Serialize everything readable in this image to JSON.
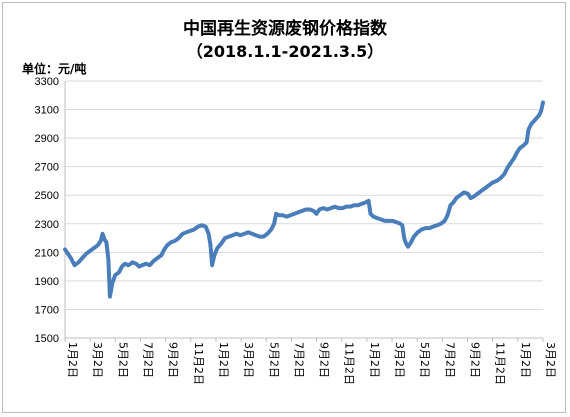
{
  "header": {
    "title": "中国再生资源废钢价格指数",
    "subtitle": "（2018.1.1-2021.3.5）",
    "unit_label": "单位：元/吨"
  },
  "colors": {
    "line": "#4a7ebb",
    "grid": "#d9d9d9",
    "axis": "#bfbfbf"
  },
  "chart_data": {
    "type": "line",
    "title": "中国再生资源废钢价格指数",
    "subtitle": "（2018.1.1-2021.3.5）",
    "ylabel": "单位：元/吨",
    "xlabel": "",
    "ylim": [
      1500,
      3300
    ],
    "yticks": [
      1500,
      1700,
      1900,
      2100,
      2300,
      2500,
      2700,
      2900,
      3100,
      3300
    ],
    "xticks": [
      "1月2日",
      "3月2日",
      "5月2日",
      "7月2日",
      "9月2日",
      "11月2日",
      "1月2日",
      "3月2日",
      "5月2日",
      "7月2日",
      "9月2日",
      "11月2日",
      "1月2日",
      "3月2日",
      "5月2日",
      "7月2日",
      "9月2日",
      "11月2日",
      "1月2日",
      "3月2日"
    ],
    "grid": true,
    "legend": "none",
    "series": [
      {
        "values": [
          [
            0,
            2120
          ],
          [
            1.5,
            2090
          ],
          [
            3,
            2060
          ],
          [
            5,
            2010
          ],
          [
            7,
            2030
          ],
          [
            9,
            2060
          ],
          [
            11,
            2090
          ],
          [
            13,
            2110
          ],
          [
            15,
            2130
          ],
          [
            17,
            2150
          ],
          [
            18.5,
            2180
          ],
          [
            19.5,
            2230
          ],
          [
            20.5,
            2190
          ],
          [
            21.5,
            2170
          ],
          [
            22.5,
            2050
          ],
          [
            23.3,
            1790
          ],
          [
            24.5,
            1880
          ],
          [
            26,
            1940
          ],
          [
            28,
            1960
          ],
          [
            29.5,
            2000
          ],
          [
            31,
            2020
          ],
          [
            33,
            2010
          ],
          [
            35,
            2030
          ],
          [
            37,
            2020
          ],
          [
            38.5,
            2000
          ],
          [
            40,
            2010
          ],
          [
            42,
            2020
          ],
          [
            44,
            2010
          ],
          [
            46,
            2040
          ],
          [
            48,
            2060
          ],
          [
            50,
            2080
          ],
          [
            51.5,
            2120
          ],
          [
            53,
            2150
          ],
          [
            55,
            2170
          ],
          [
            57,
            2180
          ],
          [
            59,
            2200
          ],
          [
            61,
            2230
          ],
          [
            63,
            2240
          ],
          [
            65,
            2250
          ],
          [
            67,
            2260
          ],
          [
            69,
            2280
          ],
          [
            71,
            2290
          ],
          [
            73,
            2280
          ],
          [
            74.5,
            2230
          ],
          [
            75.5,
            2150
          ],
          [
            76.3,
            2010
          ],
          [
            77.5,
            2080
          ],
          [
            79,
            2130
          ],
          [
            81,
            2160
          ],
          [
            83,
            2200
          ],
          [
            85,
            2210
          ],
          [
            87,
            2220
          ],
          [
            89,
            2230
          ],
          [
            91,
            2220
          ],
          [
            93,
            2230
          ],
          [
            95,
            2240
          ],
          [
            97,
            2230
          ],
          [
            99,
            2220
          ],
          [
            101,
            2210
          ],
          [
            103,
            2210
          ],
          [
            105,
            2230
          ],
          [
            107,
            2260
          ],
          [
            108.5,
            2300
          ],
          [
            109.5,
            2370
          ],
          [
            111,
            2360
          ],
          [
            113,
            2360
          ],
          [
            115,
            2350
          ],
          [
            117,
            2360
          ],
          [
            119,
            2370
          ],
          [
            121,
            2380
          ],
          [
            123,
            2390
          ],
          [
            125,
            2400
          ],
          [
            127,
            2400
          ],
          [
            129,
            2390
          ],
          [
            130.5,
            2370
          ],
          [
            132,
            2400
          ],
          [
            134,
            2410
          ],
          [
            136,
            2400
          ],
          [
            138,
            2410
          ],
          [
            140,
            2420
          ],
          [
            142,
            2410
          ],
          [
            144,
            2410
          ],
          [
            146,
            2420
          ],
          [
            148,
            2420
          ],
          [
            150,
            2430
          ],
          [
            152,
            2430
          ],
          [
            154,
            2440
          ],
          [
            156,
            2450
          ],
          [
            157.5,
            2460
          ],
          [
            158.5,
            2370
          ],
          [
            160,
            2350
          ],
          [
            162,
            2340
          ],
          [
            164,
            2330
          ],
          [
            166,
            2320
          ],
          [
            168,
            2320
          ],
          [
            170,
            2320
          ],
          [
            172,
            2310
          ],
          [
            174,
            2300
          ],
          [
            175,
            2290
          ],
          [
            176,
            2200
          ],
          [
            177,
            2160
          ],
          [
            178,
            2140
          ],
          [
            179.5,
            2170
          ],
          [
            181,
            2210
          ],
          [
            183,
            2240
          ],
          [
            185,
            2260
          ],
          [
            187,
            2270
          ],
          [
            189,
            2270
          ],
          [
            191,
            2280
          ],
          [
            193,
            2290
          ],
          [
            195,
            2300
          ],
          [
            197,
            2320
          ],
          [
            198.5,
            2360
          ],
          [
            200,
            2430
          ],
          [
            201.5,
            2450
          ],
          [
            203,
            2480
          ],
          [
            205,
            2500
          ],
          [
            207,
            2520
          ],
          [
            209,
            2510
          ],
          [
            210.5,
            2480
          ],
          [
            212,
            2490
          ],
          [
            214,
            2510
          ],
          [
            216,
            2530
          ],
          [
            218,
            2550
          ],
          [
            220,
            2570
          ],
          [
            222,
            2590
          ],
          [
            224,
            2600
          ],
          [
            226,
            2620
          ],
          [
            228,
            2650
          ],
          [
            229.5,
            2690
          ],
          [
            231,
            2720
          ],
          [
            233,
            2760
          ],
          [
            234.5,
            2800
          ],
          [
            236,
            2830
          ],
          [
            238,
            2850
          ],
          [
            239.5,
            2870
          ],
          [
            240.5,
            2960
          ],
          [
            242,
            3000
          ],
          [
            244,
            3030
          ],
          [
            246,
            3060
          ],
          [
            247,
            3090
          ],
          [
            248,
            3150
          ]
        ]
      }
    ]
  }
}
